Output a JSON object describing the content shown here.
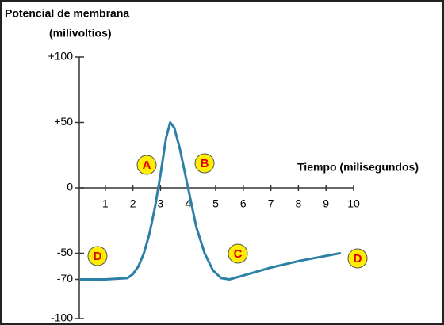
{
  "chart_data": {
    "type": "line",
    "title": "Potencial de membrana",
    "subtitle": "(milivoltios)",
    "x_label": "Tiempo (milisegundos)",
    "xlim": [
      0,
      10
    ],
    "xticks": [
      1,
      2,
      3,
      4,
      5,
      6,
      7,
      8,
      9,
      10
    ],
    "ylim": [
      -100,
      100
    ],
    "yticks": [
      {
        "value": 100,
        "label": "+100"
      },
      {
        "value": 50,
        "label": "+50"
      },
      0,
      -50,
      -70,
      -100
    ],
    "series": [
      {
        "color": "#2e7fa6",
        "x": [
          0.1,
          1,
          1.8,
          2.0,
          2.2,
          2.4,
          2.6,
          2.8,
          3.0,
          3.2,
          3.35,
          3.5,
          3.7,
          4.0,
          4.3,
          4.6,
          4.9,
          5.2,
          5.5,
          6,
          7,
          8,
          9,
          9.5
        ],
        "values": [
          -70,
          -70,
          -69,
          -66,
          -60,
          -50,
          -35,
          -15,
          10,
          38,
          50,
          46,
          30,
          0,
          -30,
          -50,
          -63,
          -69,
          -70,
          -67,
          -61,
          -56,
          -52,
          -50
        ]
      }
    ],
    "annotations": [
      "A",
      "B",
      "C",
      "D",
      "D"
    ]
  }
}
